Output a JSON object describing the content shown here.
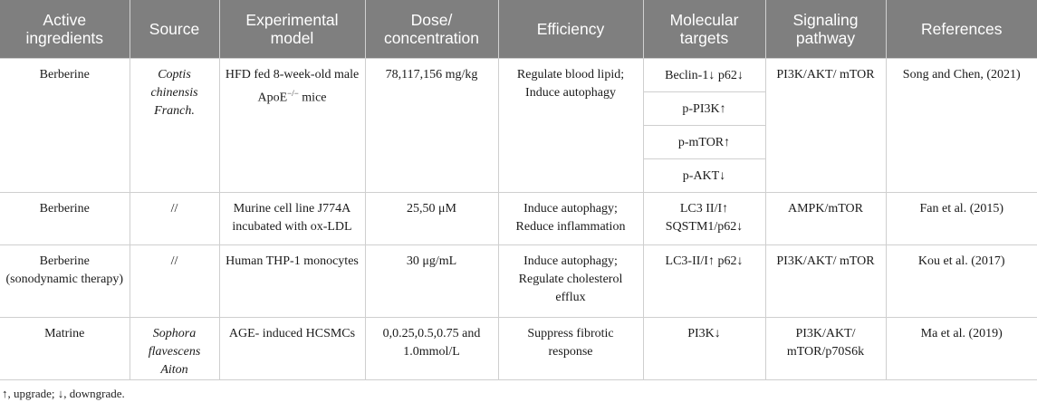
{
  "headers": [
    "Active ingredients",
    "Source",
    "Experimental model",
    "Dose/ concentration",
    "Efficiency",
    "Molecular targets",
    "Signaling pathway",
    "References"
  ],
  "rows": [
    {
      "ingredient": "Berberine",
      "source": "Coptis chinensis Franch.",
      "model_pre": "HFD fed 8-week-old male ApoE",
      "model_sup": "−/−",
      "model_post": " mice",
      "dose": "78,117,156 mg/kg",
      "efficiency": "Regulate blood lipid; Induce autophagy",
      "targets": [
        "Beclin-1↓ p62↓",
        "p-PI3K↑",
        "p-mTOR↑",
        "p-AKT↓"
      ],
      "pathway": "PI3K/AKT/ mTOR",
      "reference": "Song and Chen, (2021)"
    },
    {
      "ingredient": "Berberine",
      "source": "//",
      "model": "Murine cell line J774A incubated with ox-LDL",
      "dose": "25,50 μM",
      "efficiency": "Induce autophagy; Reduce inflammation",
      "targets": "LC3 II/I↑ SQSTM1/p62↓",
      "pathway": "AMPK/mTOR",
      "reference": "Fan et al. (2015)"
    },
    {
      "ingredient": "Berberine (sonodynamic therapy)",
      "source": "//",
      "model": "Human THP-1 monocytes",
      "dose": "30 μg/mL",
      "efficiency": "Induce autophagy; Regulate cholesterol efflux",
      "targets": "LC3-II/I↑ p62↓",
      "pathway": "PI3K/AKT/ mTOR",
      "reference": "Kou et al. (2017)"
    },
    {
      "ingredient": "Matrine",
      "source": "Sophora flavescens Aiton",
      "model": "AGE- induced HCSMCs",
      "dose": "0,0.25,0.5,0.75 and 1.0mmol/L",
      "efficiency": "Suppress fibrotic response",
      "targets": "PI3K↓",
      "pathway": "PI3K/AKT/ mTOR/p70S6k",
      "reference": "Ma et al. (2019)"
    }
  ],
  "footnote": "↑, upgrade; ↓, downgrade."
}
